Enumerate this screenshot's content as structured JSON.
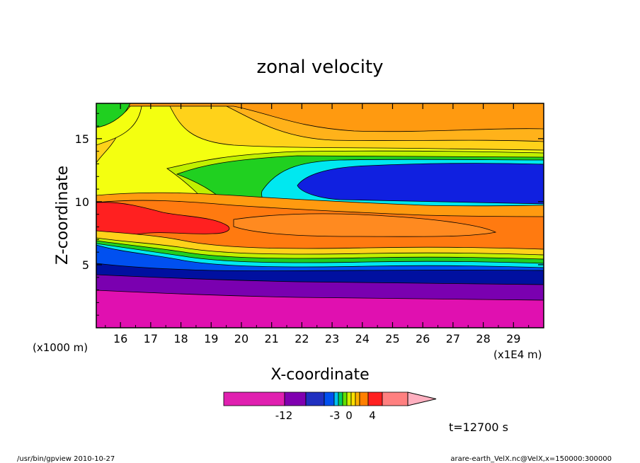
{
  "chart_data": {
    "type": "heatmap",
    "title": "zonal velocity",
    "xlabel": "X-coordinate",
    "ylabel": "Z-coordinate",
    "x_unit_label": "(x1E4 m)",
    "y_unit_label": "(x1000 m)",
    "xlim": [
      15.2,
      30.0
    ],
    "ylim": [
      0,
      17.8
    ],
    "xticks": [
      "16",
      "17",
      "18",
      "19",
      "20",
      "21",
      "22",
      "23",
      "24",
      "25",
      "26",
      "27",
      "28",
      "29"
    ],
    "yticks": [
      "5",
      "10",
      "15"
    ],
    "colorbar": {
      "tick_labels": [
        "-12",
        "-3",
        "0",
        "4"
      ],
      "tick_values": [
        -12,
        -3,
        0,
        4
      ],
      "colors": [
        "#e020b0",
        "#8000b0",
        "#2030c0",
        "#0050f0",
        "#00c0f0",
        "#00d060",
        "#60e000",
        "#d0f000",
        "#ffe000",
        "#ffb000",
        "#ff8000",
        "#ff2020",
        "#ff8080",
        "#ffb0c0"
      ]
    },
    "time_label": "t=12700 s",
    "footer_left": "/usr/bin/gpview   2010-10-27",
    "footer_right": "arare-earth_VelX.nc@VelX,x=150000:300000"
  }
}
